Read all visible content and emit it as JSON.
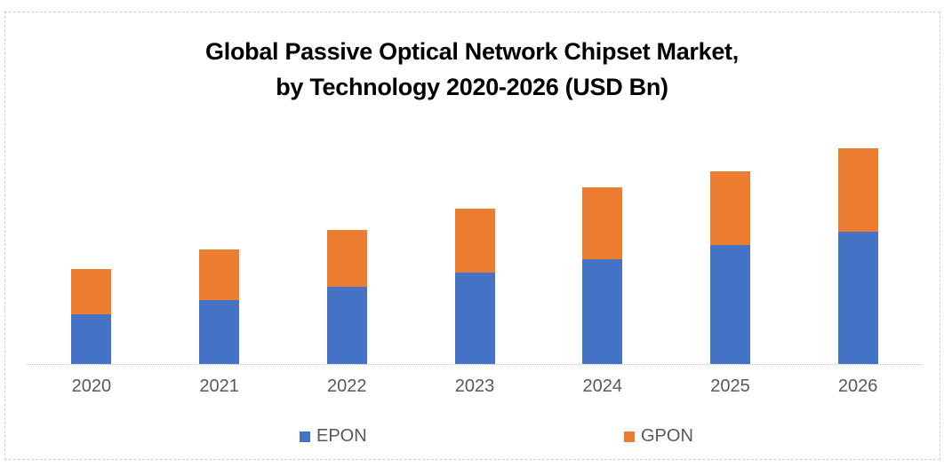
{
  "chart_data": {
    "type": "bar",
    "stacked": true,
    "title": "Global Passive Optical Network Chipset Market, by Technology 2020-2026 (USD Bn)",
    "title_lines": [
      "Global Passive Optical Network Chipset Market,",
      "by Technology 2020-2026 (USD Bn)"
    ],
    "categories": [
      "2020",
      "2021",
      "2022",
      "2023",
      "2024",
      "2025",
      "2026"
    ],
    "series": [
      {
        "name": "EPON",
        "color": "#4472C4",
        "values": [
          56,
          72,
          87,
          103,
          118,
          134,
          149
        ]
      },
      {
        "name": "GPON",
        "color": "#ED7D31",
        "values": [
          51,
          57,
          64,
          72,
          81,
          83,
          94
        ]
      }
    ],
    "totals": [
      107,
      129,
      151,
      175,
      199,
      217,
      243
    ],
    "xlabel": "",
    "ylabel": "",
    "ylim": [
      0,
      260
    ],
    "y_axis_labels_visible": false,
    "gridlines": false,
    "legend_position": "bottom",
    "value_scale_note": "chart displays no y-axis or data labels; values are relative bar heights"
  },
  "colors": {
    "epon": "#4472C4",
    "gpon": "#ED7D31",
    "axis_line": "#C8C8C8",
    "label_text": "#595959",
    "border": "#CFCFCF",
    "title_text": "#000000"
  }
}
